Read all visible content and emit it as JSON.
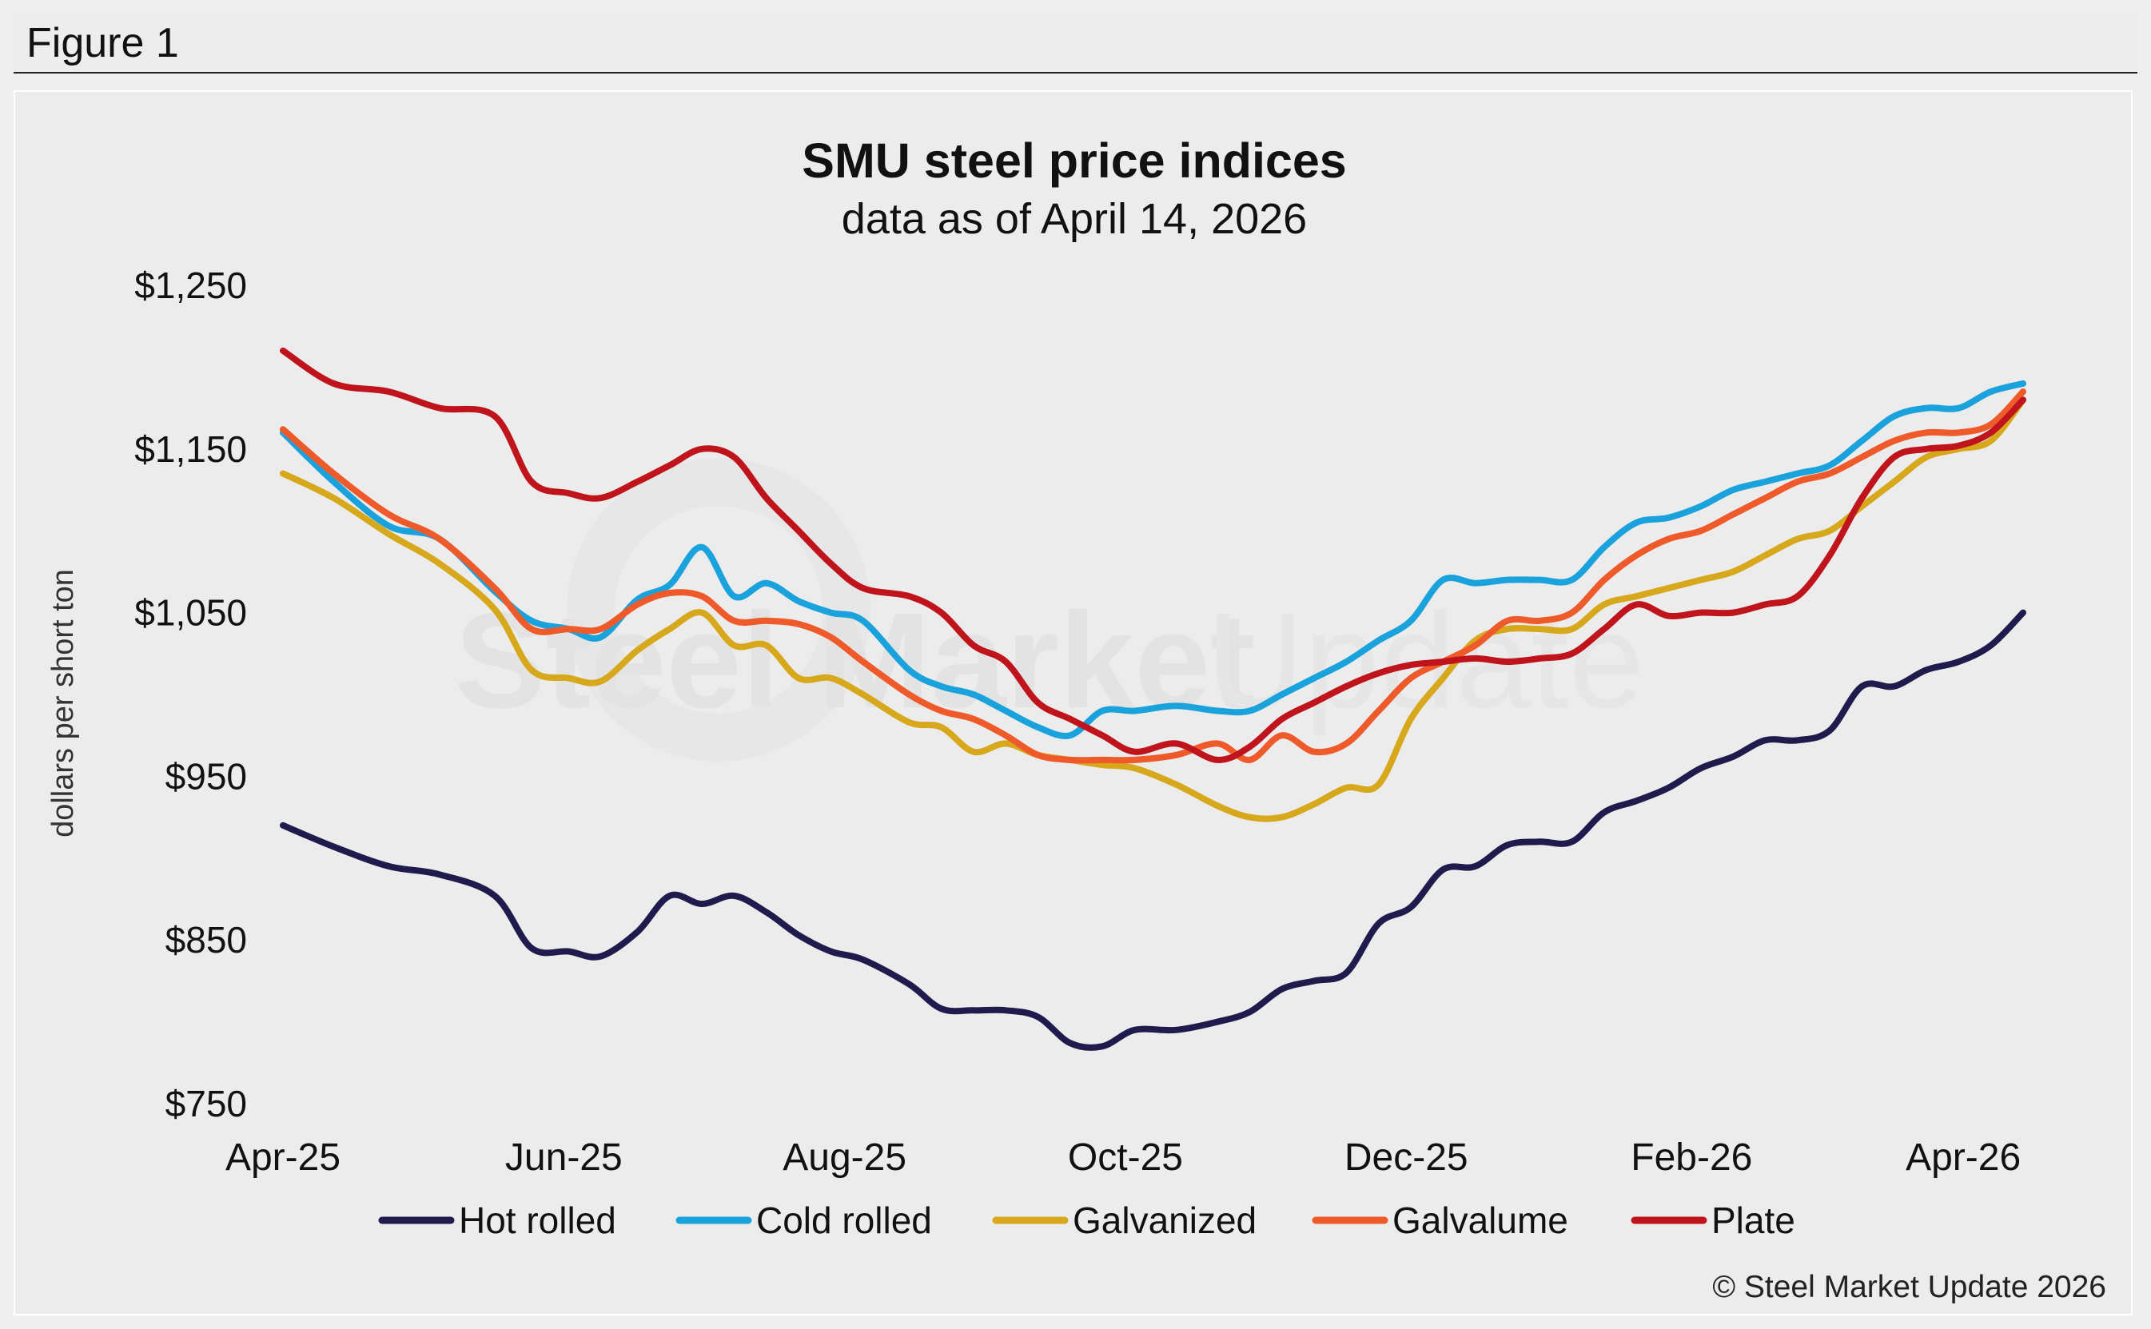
{
  "figure_label": "Figure 1",
  "chart_data": {
    "type": "line",
    "title": "SMU steel price indices",
    "subtitle": "data as of April 14, 2026",
    "ylabel": "dollars per short ton",
    "xlabel": "",
    "ylim": [
      750,
      1250
    ],
    "y_ticks": [
      1250,
      1150,
      1050,
      950,
      850,
      750
    ],
    "y_tick_labels": [
      "$1,250",
      "$1,150",
      "$1,050",
      "$950",
      "$850",
      "$750"
    ],
    "x_range": [
      "2025-04-01",
      "2026-04-14"
    ],
    "x_ticks": [
      "2025-04-01",
      "2025-06-01",
      "2025-08-01",
      "2025-10-01",
      "2025-12-01",
      "2026-02-01",
      "2026-04-01"
    ],
    "x_tick_labels": [
      "Apr-25",
      "Jun-25",
      "Aug-25",
      "Oct-25",
      "Dec-25",
      "Feb-26",
      "Apr-26"
    ],
    "grid": false,
    "legend_position": "bottom",
    "series": [
      {
        "name": "Hot rolled",
        "color": "#1f1b4d",
        "points": [
          [
            "2025-04-01",
            920
          ],
          [
            "2025-04-12",
            907
          ],
          [
            "2025-04-24",
            895
          ],
          [
            "2025-05-05",
            890
          ],
          [
            "2025-05-17",
            877
          ],
          [
            "2025-05-25",
            845
          ],
          [
            "2025-06-02",
            843
          ],
          [
            "2025-06-09",
            840
          ],
          [
            "2025-06-17",
            855
          ],
          [
            "2025-06-24",
            877
          ],
          [
            "2025-07-01",
            872
          ],
          [
            "2025-07-08",
            877
          ],
          [
            "2025-07-15",
            867
          ],
          [
            "2025-07-22",
            853
          ],
          [
            "2025-07-29",
            843
          ],
          [
            "2025-08-05",
            838
          ],
          [
            "2025-08-15",
            823
          ],
          [
            "2025-08-22",
            808
          ],
          [
            "2025-08-29",
            807
          ],
          [
            "2025-09-05",
            807
          ],
          [
            "2025-09-12",
            803
          ],
          [
            "2025-09-19",
            787
          ],
          [
            "2025-09-26",
            785
          ],
          [
            "2025-10-03",
            795
          ],
          [
            "2025-10-12",
            795
          ],
          [
            "2025-10-21",
            800
          ],
          [
            "2025-10-28",
            806
          ],
          [
            "2025-11-04",
            820
          ],
          [
            "2025-11-11",
            825
          ],
          [
            "2025-11-18",
            830
          ],
          [
            "2025-11-25",
            860
          ],
          [
            "2025-12-02",
            870
          ],
          [
            "2025-12-09",
            893
          ],
          [
            "2025-12-16",
            895
          ],
          [
            "2025-12-23",
            908
          ],
          [
            "2025-12-30",
            910
          ],
          [
            "2026-01-06",
            910
          ],
          [
            "2026-01-13",
            928
          ],
          [
            "2026-01-20",
            935
          ],
          [
            "2026-01-27",
            943
          ],
          [
            "2026-02-03",
            955
          ],
          [
            "2026-02-10",
            962
          ],
          [
            "2026-02-17",
            972
          ],
          [
            "2026-02-24",
            972
          ],
          [
            "2026-03-03",
            978
          ],
          [
            "2026-03-10",
            1005
          ],
          [
            "2026-03-17",
            1005
          ],
          [
            "2026-03-24",
            1015
          ],
          [
            "2026-03-31",
            1020
          ],
          [
            "2026-04-07",
            1030
          ],
          [
            "2026-04-14",
            1050
          ]
        ]
      },
      {
        "name": "Cold rolled",
        "color": "#19a2dc",
        "points": [
          [
            "2025-04-01",
            1160
          ],
          [
            "2025-04-12",
            1130
          ],
          [
            "2025-04-24",
            1103
          ],
          [
            "2025-05-05",
            1095
          ],
          [
            "2025-05-17",
            1063
          ],
          [
            "2025-05-25",
            1045
          ],
          [
            "2025-06-02",
            1040
          ],
          [
            "2025-06-09",
            1035
          ],
          [
            "2025-06-17",
            1058
          ],
          [
            "2025-06-24",
            1067
          ],
          [
            "2025-07-01",
            1090
          ],
          [
            "2025-07-08",
            1060
          ],
          [
            "2025-07-15",
            1068
          ],
          [
            "2025-07-22",
            1057
          ],
          [
            "2025-07-29",
            1050
          ],
          [
            "2025-08-05",
            1045
          ],
          [
            "2025-08-15",
            1015
          ],
          [
            "2025-08-22",
            1005
          ],
          [
            "2025-08-29",
            1000
          ],
          [
            "2025-09-05",
            990
          ],
          [
            "2025-09-12",
            980
          ],
          [
            "2025-09-19",
            975
          ],
          [
            "2025-09-26",
            990
          ],
          [
            "2025-10-03",
            990
          ],
          [
            "2025-10-12",
            993
          ],
          [
            "2025-10-21",
            990
          ],
          [
            "2025-10-28",
            990
          ],
          [
            "2025-11-04",
            1000
          ],
          [
            "2025-11-11",
            1010
          ],
          [
            "2025-11-18",
            1020
          ],
          [
            "2025-11-25",
            1033
          ],
          [
            "2025-12-02",
            1045
          ],
          [
            "2025-12-09",
            1070
          ],
          [
            "2025-12-16",
            1068
          ],
          [
            "2025-12-23",
            1070
          ],
          [
            "2025-12-30",
            1070
          ],
          [
            "2026-01-06",
            1070
          ],
          [
            "2026-01-13",
            1090
          ],
          [
            "2026-01-20",
            1105
          ],
          [
            "2026-01-27",
            1108
          ],
          [
            "2026-02-03",
            1115
          ],
          [
            "2026-02-10",
            1125
          ],
          [
            "2026-02-17",
            1130
          ],
          [
            "2026-02-24",
            1135
          ],
          [
            "2026-03-03",
            1140
          ],
          [
            "2026-03-10",
            1155
          ],
          [
            "2026-03-17",
            1170
          ],
          [
            "2026-03-24",
            1175
          ],
          [
            "2026-03-31",
            1175
          ],
          [
            "2026-04-07",
            1185
          ],
          [
            "2026-04-14",
            1190
          ]
        ]
      },
      {
        "name": "Galvanized",
        "color": "#d8a81c",
        "points": [
          [
            "2025-04-01",
            1135
          ],
          [
            "2025-04-12",
            1120
          ],
          [
            "2025-04-24",
            1098
          ],
          [
            "2025-05-05",
            1080
          ],
          [
            "2025-05-17",
            1052
          ],
          [
            "2025-05-25",
            1015
          ],
          [
            "2025-06-02",
            1010
          ],
          [
            "2025-06-09",
            1008
          ],
          [
            "2025-06-17",
            1027
          ],
          [
            "2025-06-24",
            1040
          ],
          [
            "2025-07-01",
            1050
          ],
          [
            "2025-07-08",
            1030
          ],
          [
            "2025-07-15",
            1030
          ],
          [
            "2025-07-22",
            1010
          ],
          [
            "2025-07-29",
            1010
          ],
          [
            "2025-08-05",
            1000
          ],
          [
            "2025-08-15",
            983
          ],
          [
            "2025-08-22",
            980
          ],
          [
            "2025-08-29",
            965
          ],
          [
            "2025-09-05",
            970
          ],
          [
            "2025-09-12",
            963
          ],
          [
            "2025-09-19",
            960
          ],
          [
            "2025-09-26",
            957
          ],
          [
            "2025-10-03",
            955
          ],
          [
            "2025-10-12",
            945
          ],
          [
            "2025-10-21",
            932
          ],
          [
            "2025-10-28",
            925
          ],
          [
            "2025-11-04",
            925
          ],
          [
            "2025-11-11",
            933
          ],
          [
            "2025-11-18",
            943
          ],
          [
            "2025-11-25",
            945
          ],
          [
            "2025-12-02",
            985
          ],
          [
            "2025-12-09",
            1010
          ],
          [
            "2025-12-16",
            1033
          ],
          [
            "2025-12-23",
            1040
          ],
          [
            "2025-12-30",
            1040
          ],
          [
            "2026-01-06",
            1040
          ],
          [
            "2026-01-13",
            1055
          ],
          [
            "2026-01-20",
            1060
          ],
          [
            "2026-01-27",
            1065
          ],
          [
            "2026-02-03",
            1070
          ],
          [
            "2026-02-10",
            1075
          ],
          [
            "2026-02-17",
            1085
          ],
          [
            "2026-02-24",
            1095
          ],
          [
            "2026-03-03",
            1100
          ],
          [
            "2026-03-10",
            1115
          ],
          [
            "2026-03-17",
            1130
          ],
          [
            "2026-03-24",
            1145
          ],
          [
            "2026-03-31",
            1150
          ],
          [
            "2026-04-07",
            1155
          ],
          [
            "2026-04-14",
            1180
          ]
        ]
      },
      {
        "name": "Galvalume",
        "color": "#ef5a2a",
        "points": [
          [
            "2025-04-01",
            1162
          ],
          [
            "2025-04-12",
            1135
          ],
          [
            "2025-04-24",
            1110
          ],
          [
            "2025-05-05",
            1095
          ],
          [
            "2025-05-17",
            1065
          ],
          [
            "2025-05-25",
            1040
          ],
          [
            "2025-06-02",
            1040
          ],
          [
            "2025-06-09",
            1040
          ],
          [
            "2025-06-17",
            1055
          ],
          [
            "2025-06-24",
            1062
          ],
          [
            "2025-07-01",
            1060
          ],
          [
            "2025-07-08",
            1045
          ],
          [
            "2025-07-15",
            1045
          ],
          [
            "2025-07-22",
            1043
          ],
          [
            "2025-07-29",
            1035
          ],
          [
            "2025-08-05",
            1020
          ],
          [
            "2025-08-15",
            1000
          ],
          [
            "2025-08-22",
            990
          ],
          [
            "2025-08-29",
            985
          ],
          [
            "2025-09-05",
            975
          ],
          [
            "2025-09-12",
            963
          ],
          [
            "2025-09-19",
            960
          ],
          [
            "2025-09-26",
            960
          ],
          [
            "2025-10-03",
            960
          ],
          [
            "2025-10-12",
            963
          ],
          [
            "2025-10-21",
            970
          ],
          [
            "2025-10-28",
            960
          ],
          [
            "2025-11-04",
            975
          ],
          [
            "2025-11-11",
            965
          ],
          [
            "2025-11-18",
            970
          ],
          [
            "2025-11-25",
            990
          ],
          [
            "2025-12-02",
            1010
          ],
          [
            "2025-12-09",
            1020
          ],
          [
            "2025-12-16",
            1030
          ],
          [
            "2025-12-23",
            1045
          ],
          [
            "2025-12-30",
            1045
          ],
          [
            "2026-01-06",
            1050
          ],
          [
            "2026-01-13",
            1070
          ],
          [
            "2026-01-20",
            1085
          ],
          [
            "2026-01-27",
            1095
          ],
          [
            "2026-02-03",
            1100
          ],
          [
            "2026-02-10",
            1110
          ],
          [
            "2026-02-17",
            1120
          ],
          [
            "2026-02-24",
            1130
          ],
          [
            "2026-03-03",
            1135
          ],
          [
            "2026-03-10",
            1145
          ],
          [
            "2026-03-17",
            1155
          ],
          [
            "2026-03-24",
            1160
          ],
          [
            "2026-03-31",
            1160
          ],
          [
            "2026-04-07",
            1165
          ],
          [
            "2026-04-14",
            1185
          ]
        ]
      },
      {
        "name": "Plate",
        "color": "#c0141c",
        "points": [
          [
            "2025-04-01",
            1210
          ],
          [
            "2025-04-12",
            1190
          ],
          [
            "2025-04-24",
            1185
          ],
          [
            "2025-05-05",
            1175
          ],
          [
            "2025-05-17",
            1170
          ],
          [
            "2025-05-25",
            1130
          ],
          [
            "2025-06-02",
            1123
          ],
          [
            "2025-06-09",
            1120
          ],
          [
            "2025-06-17",
            1130
          ],
          [
            "2025-06-24",
            1140
          ],
          [
            "2025-07-01",
            1150
          ],
          [
            "2025-07-08",
            1145
          ],
          [
            "2025-07-15",
            1120
          ],
          [
            "2025-07-22",
            1100
          ],
          [
            "2025-07-29",
            1080
          ],
          [
            "2025-08-05",
            1065
          ],
          [
            "2025-08-15",
            1060
          ],
          [
            "2025-08-22",
            1050
          ],
          [
            "2025-08-29",
            1030
          ],
          [
            "2025-09-05",
            1020
          ],
          [
            "2025-09-12",
            995
          ],
          [
            "2025-09-19",
            985
          ],
          [
            "2025-09-26",
            975
          ],
          [
            "2025-10-03",
            965
          ],
          [
            "2025-10-12",
            970
          ],
          [
            "2025-10-21",
            960
          ],
          [
            "2025-10-28",
            968
          ],
          [
            "2025-11-04",
            985
          ],
          [
            "2025-11-11",
            995
          ],
          [
            "2025-11-18",
            1005
          ],
          [
            "2025-11-25",
            1013
          ],
          [
            "2025-12-02",
            1018
          ],
          [
            "2025-12-09",
            1020
          ],
          [
            "2025-12-16",
            1022
          ],
          [
            "2025-12-23",
            1020
          ],
          [
            "2025-12-30",
            1022
          ],
          [
            "2026-01-06",
            1025
          ],
          [
            "2026-01-13",
            1040
          ],
          [
            "2026-01-20",
            1055
          ],
          [
            "2026-01-27",
            1048
          ],
          [
            "2026-02-03",
            1050
          ],
          [
            "2026-02-10",
            1050
          ],
          [
            "2026-02-17",
            1055
          ],
          [
            "2026-02-24",
            1060
          ],
          [
            "2026-03-03",
            1085
          ],
          [
            "2026-03-10",
            1120
          ],
          [
            "2026-03-17",
            1145
          ],
          [
            "2026-03-24",
            1150
          ],
          [
            "2026-03-31",
            1152
          ],
          [
            "2026-04-07",
            1160
          ],
          [
            "2026-04-14",
            1180
          ]
        ]
      }
    ]
  },
  "watermark": {
    "word1": "Steel Market",
    "word2": "Update"
  },
  "copyright": "© Steel Market Update 2026"
}
